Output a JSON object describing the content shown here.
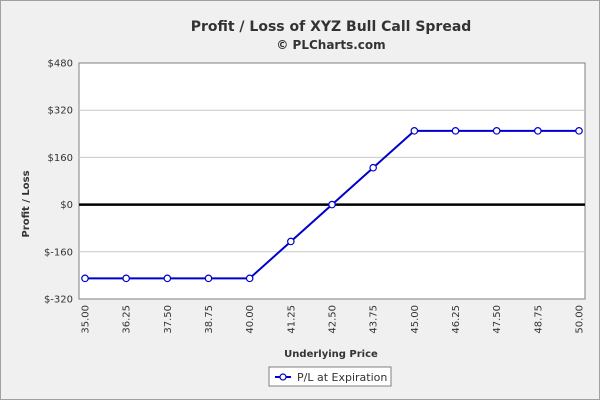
{
  "chart_data": {
    "type": "line",
    "title": "Profit / Loss of XYZ Bull Call Spread",
    "subtitle": "© PLCharts.com",
    "xlabel": "Underlying Price",
    "ylabel": "Profit / Loss",
    "x": [
      "35.00",
      "36.25",
      "37.50",
      "38.75",
      "40.00",
      "41.25",
      "42.50",
      "43.75",
      "45.00",
      "46.25",
      "47.50",
      "48.75",
      "50.00"
    ],
    "series": [
      {
        "name": "P/L at Expiration",
        "color": "#0000cc",
        "values": [
          -250,
          -250,
          -250,
          -250,
          -250,
          -125,
          0,
          125,
          250,
          250,
          250,
          250,
          250
        ]
      }
    ],
    "ylim": [
      -320,
      480
    ],
    "yticks": [
      480,
      320,
      160,
      0,
      -160,
      -320
    ],
    "ytick_labels": [
      "$480",
      "$320",
      "$160",
      "$0",
      "$-160",
      "$-320"
    ],
    "grid": true,
    "legend_position": "bottom-center"
  }
}
